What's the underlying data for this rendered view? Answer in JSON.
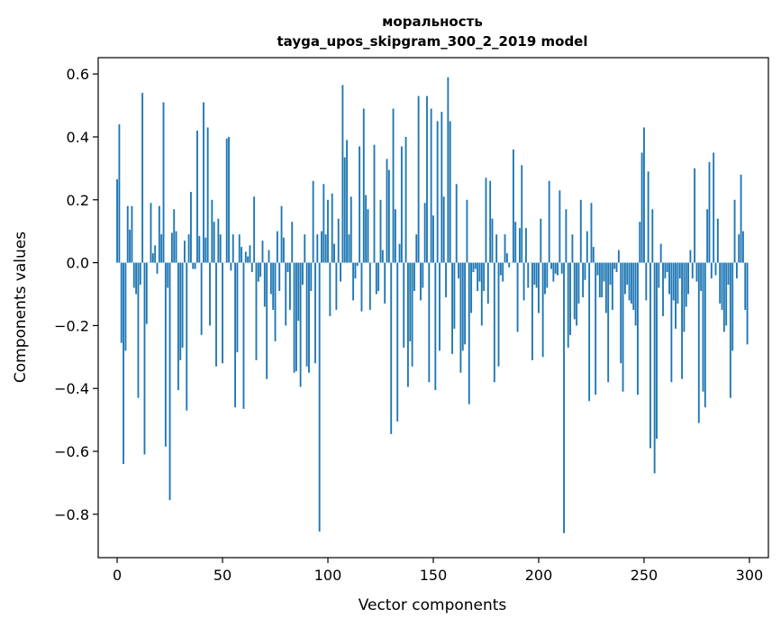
{
  "chart_data": {
    "type": "bar",
    "title": "моральность",
    "subtitle": "tayga_upos_skipgram_300_2_2019 model",
    "xlabel": "Vector components",
    "ylabel": "Components values",
    "xlim": [
      -9,
      309
    ],
    "ylim": [
      -0.938,
      0.652
    ],
    "xticks": [
      0,
      50,
      100,
      150,
      200,
      250,
      300
    ],
    "yticks": [
      0.6,
      0.4,
      0.2,
      0.0,
      -0.2,
      -0.4,
      -0.6,
      -0.8
    ],
    "xtick_labels": [
      "0",
      "50",
      "100",
      "150",
      "200",
      "250",
      "300"
    ],
    "ytick_labels": [
      "0.6",
      "0.4",
      "0.2",
      "0.0",
      "−0.2",
      "−0.4",
      "−0.6",
      "−0.8"
    ],
    "bar_color": "#1f77b4",
    "grid": false,
    "x": "integer component index 0..299",
    "values": [
      0.265,
      0.44,
      -0.255,
      -0.64,
      -0.28,
      0.18,
      0.105,
      0.18,
      -0.08,
      -0.1,
      -0.43,
      -0.07,
      0.54,
      -0.61,
      -0.195,
      0.0,
      0.19,
      0.03,
      0.055,
      -0.035,
      0.18,
      0.09,
      0.51,
      -0.585,
      -0.08,
      -0.755,
      0.095,
      0.17,
      0.1,
      -0.405,
      -0.31,
      -0.27,
      0.07,
      -0.47,
      0.09,
      0.225,
      -0.02,
      -0.02,
      0.42,
      0.085,
      -0.23,
      0.51,
      0.08,
      0.43,
      -0.2,
      0.2,
      0.13,
      -0.33,
      0.14,
      0.09,
      -0.32,
      0.0,
      0.395,
      0.4,
      -0.025,
      0.09,
      -0.46,
      -0.285,
      0.09,
      0.05,
      -0.465,
      0.035,
      0.02,
      0.055,
      -0.03,
      0.21,
      -0.31,
      -0.06,
      -0.045,
      0.07,
      -0.14,
      -0.37,
      0.04,
      -0.1,
      -0.15,
      -0.25,
      0.1,
      -0.09,
      0.18,
      0.08,
      -0.2,
      -0.03,
      -0.15,
      0.13,
      -0.35,
      -0.345,
      -0.185,
      -0.395,
      -0.07,
      0.09,
      -0.33,
      -0.35,
      -0.09,
      0.26,
      -0.32,
      0.09,
      -0.855,
      0.1,
      0.25,
      0.09,
      0.2,
      -0.17,
      0.22,
      0.06,
      -0.15,
      0.14,
      -0.06,
      0.565,
      0.335,
      0.39,
      0.09,
      0.21,
      -0.12,
      -0.05,
      -0.01,
      0.37,
      -0.155,
      0.49,
      0.215,
      0.17,
      -0.15,
      0.0,
      0.375,
      -0.1,
      -0.09,
      0.2,
      0.04,
      -0.13,
      0.33,
      0.295,
      -0.545,
      0.49,
      0.17,
      -0.505,
      0.06,
      0.37,
      -0.27,
      0.4,
      -0.395,
      -0.25,
      -0.33,
      -0.09,
      0.09,
      0.53,
      -0.12,
      -0.08,
      0.19,
      0.53,
      -0.38,
      0.49,
      0.15,
      -0.405,
      0.45,
      -0.28,
      0.48,
      0.21,
      -0.11,
      0.59,
      0.45,
      -0.29,
      -0.21,
      0.25,
      -0.05,
      -0.35,
      -0.28,
      -0.26,
      0.2,
      -0.45,
      -0.16,
      -0.03,
      -0.02,
      -0.09,
      -0.06,
      -0.2,
      -0.09,
      0.27,
      -0.13,
      0.26,
      0.14,
      -0.38,
      0.09,
      -0.33,
      -0.04,
      -0.06,
      0.09,
      0.03,
      -0.015,
      0.0,
      0.36,
      0.13,
      -0.22,
      0.11,
      0.31,
      -0.12,
      0.11,
      -0.08,
      0.0,
      -0.31,
      -0.07,
      -0.08,
      -0.16,
      0.14,
      -0.3,
      -0.1,
      -0.08,
      0.26,
      -0.02,
      -0.06,
      -0.035,
      -0.04,
      0.23,
      -0.035,
      -0.86,
      0.17,
      -0.27,
      -0.23,
      0.09,
      -0.18,
      -0.2,
      -0.13,
      0.2,
      -0.11,
      -0.055,
      0.1,
      -0.44,
      0.19,
      0.05,
      -0.42,
      -0.04,
      -0.11,
      -0.11,
      -0.06,
      -0.16,
      -0.38,
      -0.07,
      -0.15,
      -0.02,
      -0.03,
      0.04,
      -0.32,
      -0.41,
      -0.1,
      -0.07,
      -0.12,
      -0.13,
      -0.15,
      -0.2,
      -0.42,
      0.13,
      0.35,
      0.43,
      -0.12,
      0.29,
      -0.59,
      0.17,
      -0.67,
      -0.56,
      -0.08,
      0.06,
      -0.17,
      -0.05,
      -0.03,
      -0.1,
      -0.38,
      -0.12,
      -0.21,
      -0.13,
      -0.05,
      -0.37,
      -0.22,
      -0.14,
      -0.1,
      0.04,
      -0.05,
      0.3,
      -0.06,
      -0.51,
      -0.09,
      -0.41,
      -0.46,
      0.17,
      0.32,
      -0.05,
      0.35,
      -0.04,
      0.14,
      -0.13,
      -0.15,
      -0.22,
      -0.2,
      -0.07,
      -0.43,
      -0.28,
      0.2,
      -0.05,
      0.09,
      0.28,
      0.1,
      -0.15,
      -0.26
    ]
  }
}
